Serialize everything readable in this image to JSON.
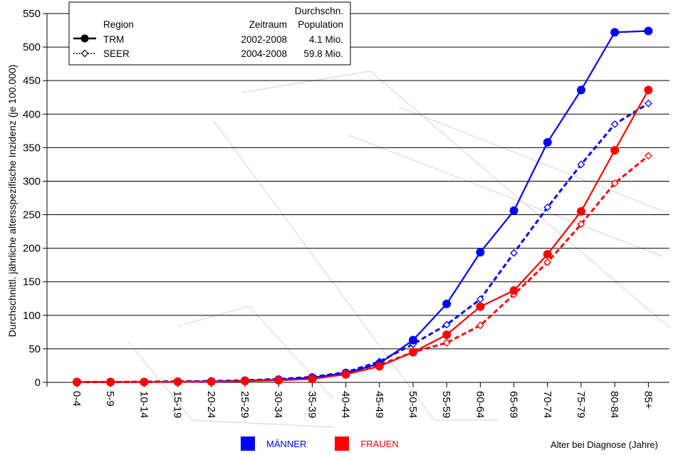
{
  "chart_data": {
    "type": "line",
    "ylabel": "Durchschnittl. jährliche altersspezifische Inzidenz (je 100.000)",
    "xlabel": "Alter bei Diagnose (Jahre)",
    "ylim": [
      0,
      550
    ],
    "yticks": [
      0,
      50,
      100,
      150,
      200,
      250,
      300,
      350,
      400,
      450,
      500,
      550
    ],
    "grid": "horizontal",
    "categories": [
      "0-4",
      "5-9",
      "10-14",
      "15-19",
      "20-24",
      "25-29",
      "30-34",
      "35-39",
      "40-44",
      "45-49",
      "50-54",
      "55-59",
      "60-64",
      "65-69",
      "70-74",
      "75-79",
      "80-84",
      "85+"
    ],
    "series": [
      {
        "region": "TRM",
        "sex": "MÄNNER",
        "color": "#0000ff",
        "style": "solid",
        "marker": "filled-circle",
        "values": [
          0.5,
          0.5,
          0.5,
          1,
          1.5,
          2.5,
          4,
          7,
          14,
          28,
          63,
          117,
          194,
          256,
          358,
          436,
          522,
          524
        ]
      },
      {
        "region": "SEER",
        "sex": "MÄNNER",
        "color": "#0000ff",
        "style": "dashed",
        "marker": "open-diamond",
        "values": [
          0.5,
          0.5,
          1,
          1.5,
          2,
          3,
          5,
          8,
          15,
          31,
          57,
          86,
          124,
          193,
          261,
          325,
          385,
          416
        ]
      },
      {
        "region": "TRM",
        "sex": "FRAUEN",
        "color": "#ff0000",
        "style": "solid",
        "marker": "filled-circle",
        "values": [
          0.5,
          0.5,
          0.5,
          1,
          1,
          2,
          3,
          5,
          12,
          24,
          45,
          71,
          113,
          137,
          191,
          255,
          346,
          436
        ]
      },
      {
        "region": "SEER",
        "sex": "FRAUEN",
        "color": "#ff0000",
        "style": "dashed",
        "marker": "open-diamond",
        "values": [
          0.5,
          0.5,
          0.5,
          1,
          1.5,
          2.5,
          4,
          6,
          13,
          26,
          45,
          59,
          85,
          131,
          179,
          236,
          297,
          338
        ]
      }
    ],
    "legend": {
      "header_region": "Region",
      "header_period": "Zeitraum",
      "header_pop_line1": "Durchschn.",
      "header_pop_line2": "Population",
      "rows": [
        {
          "region": "TRM",
          "period": "2002-2008",
          "population": "4.1 Mio."
        },
        {
          "region": "SEER",
          "period": "2004-2008",
          "population": "59.8 Mio."
        }
      ]
    },
    "sex_legend": [
      {
        "label": "MÄNNER",
        "color": "#0000ff"
      },
      {
        "label": "FRAUEN",
        "color": "#ff0000"
      }
    ]
  }
}
